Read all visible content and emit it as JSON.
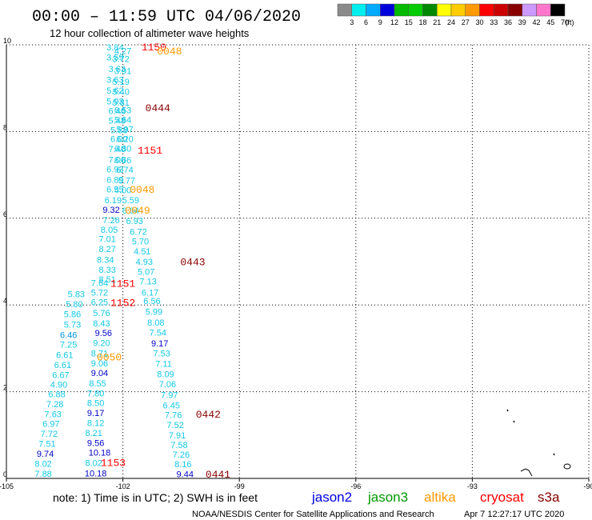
{
  "chart_data": {
    "type": "scatter",
    "title": "00:00 – 11:59 UTC 04/06/2020",
    "subtitle": "12 hour collection of altimeter wave heights",
    "xlim": [
      -105,
      -90
    ],
    "ylim": [
      0,
      10
    ],
    "x_ticks": [
      "-105",
      "-102",
      "-99",
      "-96",
      "-93",
      "-90"
    ],
    "y_ticks": [
      "0",
      "2",
      "4",
      "6",
      "8",
      "10"
    ],
    "grid": true,
    "colorbar": {
      "unit": "(ft)",
      "labels": [
        "3",
        "6",
        "9",
        "12",
        "15",
        "18",
        "21",
        "24",
        "27",
        "30",
        "33",
        "36",
        "39",
        "42",
        "45",
        "70"
      ],
      "colors": [
        "#8a8a8a",
        "#00eeee",
        "#00aaff",
        "#0000dd",
        "#00bb00",
        "#00cc00",
        "#008800",
        "#ffff00",
        "#ffcc00",
        "#ff9900",
        "#ff0000",
        "#cc0000",
        "#880000",
        "#cc99ff",
        "#ff77cc",
        "#000000"
      ]
    },
    "value_colors": {
      "cyan": "#12c8e6",
      "blue": "#0090e0",
      "dblue": "#0000c8"
    },
    "series": [
      {
        "name": "track A",
        "points": [
          {
            "lon": -102.2,
            "lat": 9.87,
            "v": "3.84",
            "c": "cyan"
          },
          {
            "lon": -102.0,
            "lat": 9.79,
            "v": "4.27",
            "c": "cyan"
          },
          {
            "lon": -102.2,
            "lat": 9.64,
            "v": "3.59",
            "c": "cyan"
          },
          {
            "lon": -102.05,
            "lat": 9.6,
            "v": "3.72",
            "c": "cyan"
          },
          {
            "lon": -102.15,
            "lat": 9.37,
            "v": "3.63",
            "c": "cyan"
          },
          {
            "lon": -102.0,
            "lat": 9.33,
            "v": "3.91",
            "c": "cyan"
          },
          {
            "lon": -102.2,
            "lat": 9.12,
            "v": "3.63",
            "c": "cyan"
          },
          {
            "lon": -102.05,
            "lat": 9.08,
            "v": "5.19",
            "c": "cyan"
          },
          {
            "lon": -102.2,
            "lat": 8.87,
            "v": "5.62",
            "c": "cyan"
          },
          {
            "lon": -102.05,
            "lat": 8.85,
            "v": "5.40",
            "c": "cyan"
          },
          {
            "lon": -102.2,
            "lat": 8.63,
            "v": "5.93",
            "c": "cyan"
          },
          {
            "lon": -102.05,
            "lat": 8.6,
            "v": "5.81",
            "c": "cyan"
          },
          {
            "lon": -102.15,
            "lat": 8.4,
            "v": "6.46",
            "c": "cyan"
          },
          {
            "lon": -102.0,
            "lat": 8.42,
            "v": "6.53",
            "c": "cyan"
          },
          {
            "lon": -102.15,
            "lat": 8.18,
            "v": "5.48",
            "c": "cyan"
          },
          {
            "lon": -102.0,
            "lat": 8.2,
            "v": "5.64",
            "c": "cyan"
          },
          {
            "lon": -102.1,
            "lat": 7.96,
            "v": "5.88",
            "c": "cyan"
          },
          {
            "lon": -101.95,
            "lat": 7.98,
            "v": "5.97",
            "c": "cyan"
          },
          {
            "lon": -102.1,
            "lat": 7.76,
            "v": "6.00",
            "c": "cyan"
          },
          {
            "lon": -101.95,
            "lat": 7.76,
            "v": "6.20",
            "c": "cyan"
          },
          {
            "lon": -102.15,
            "lat": 7.53,
            "v": "7.40",
            "c": "cyan"
          },
          {
            "lon": -102.0,
            "lat": 7.54,
            "v": "6.80",
            "c": "cyan"
          },
          {
            "lon": -102.15,
            "lat": 7.28,
            "v": "7.00",
            "c": "cyan"
          },
          {
            "lon": -102.0,
            "lat": 7.27,
            "v": "6.66",
            "c": "cyan"
          },
          {
            "lon": -102.2,
            "lat": 7.06,
            "v": "6.93",
            "c": "cyan"
          },
          {
            "lon": -101.95,
            "lat": 7.05,
            "v": "6.74",
            "c": "cyan"
          },
          {
            "lon": -102.2,
            "lat": 6.82,
            "v": "6.89",
            "c": "cyan"
          },
          {
            "lon": -101.9,
            "lat": 6.8,
            "v": "5.77",
            "c": "cyan"
          },
          {
            "lon": -102.2,
            "lat": 6.6,
            "v": "6.55",
            "c": "cyan"
          },
          {
            "lon": -102.0,
            "lat": 6.58,
            "v": "4.00",
            "c": "cyan"
          },
          {
            "lon": -102.25,
            "lat": 6.35,
            "v": "6.19",
            "c": "cyan"
          },
          {
            "lon": -101.8,
            "lat": 6.35,
            "v": "5.59",
            "c": "cyan"
          },
          {
            "lon": -102.3,
            "lat": 6.13,
            "v": "9.32",
            "c": "dblue"
          },
          {
            "lon": -101.8,
            "lat": 6.11,
            "v": "6.64",
            "c": "cyan"
          },
          {
            "lon": -102.3,
            "lat": 5.89,
            "v": "7.26",
            "c": "cyan"
          },
          {
            "lon": -101.7,
            "lat": 5.87,
            "v": "6.93",
            "c": "cyan"
          },
          {
            "lon": -102.35,
            "lat": 5.66,
            "v": "8.05",
            "c": "cyan"
          },
          {
            "lon": -101.6,
            "lat": 5.62,
            "v": "6.72",
            "c": "cyan"
          },
          {
            "lon": -102.4,
            "lat": 5.45,
            "v": "7.01",
            "c": "cyan"
          },
          {
            "lon": -101.55,
            "lat": 5.4,
            "v": "5.70",
            "c": "cyan"
          },
          {
            "lon": -102.4,
            "lat": 5.22,
            "v": "8.27",
            "c": "cyan"
          },
          {
            "lon": -101.5,
            "lat": 5.17,
            "v": "4.51",
            "c": "cyan"
          },
          {
            "lon": -102.45,
            "lat": 4.97,
            "v": "8.34",
            "c": "cyan"
          },
          {
            "lon": -101.45,
            "lat": 4.93,
            "v": "4.93",
            "c": "cyan"
          },
          {
            "lon": -102.4,
            "lat": 4.74,
            "v": "8.33",
            "c": "cyan"
          },
          {
            "lon": -101.4,
            "lat": 4.7,
            "v": "5.07",
            "c": "cyan"
          },
          {
            "lon": -102.4,
            "lat": 4.52,
            "v": "8.51",
            "c": "cyan"
          },
          {
            "lon": -101.35,
            "lat": 4.47,
            "v": "7.13",
            "c": "cyan"
          },
          {
            "lon": -102.6,
            "lat": 4.44,
            "v": "7.64",
            "c": "cyan"
          },
          {
            "lon": -101.3,
            "lat": 4.22,
            "v": "6.17",
            "c": "cyan"
          },
          {
            "lon": -102.6,
            "lat": 4.22,
            "v": "5.72",
            "c": "cyan"
          },
          {
            "lon": -101.25,
            "lat": 4.02,
            "v": "6.56",
            "c": "cyan"
          },
          {
            "lon": -102.6,
            "lat": 3.99,
            "v": "6.25",
            "c": "cyan"
          },
          {
            "lon": -101.2,
            "lat": 3.77,
            "v": "5.99",
            "c": "cyan"
          },
          {
            "lon": -102.55,
            "lat": 3.75,
            "v": "5.76",
            "c": "cyan"
          },
          {
            "lon": -101.15,
            "lat": 3.52,
            "v": "8.08",
            "c": "cyan"
          },
          {
            "lon": -102.55,
            "lat": 3.51,
            "v": "8.43",
            "c": "cyan"
          },
          {
            "lon": -101.1,
            "lat": 3.29,
            "v": "7.54",
            "c": "cyan"
          },
          {
            "lon": -102.5,
            "lat": 3.28,
            "v": "9.56",
            "c": "dblue"
          },
          {
            "lon": -101.05,
            "lat": 3.04,
            "v": "9.17",
            "c": "dblue"
          },
          {
            "lon": -102.55,
            "lat": 3.05,
            "v": "9.20",
            "c": "cyan"
          },
          {
            "lon": -101.0,
            "lat": 2.81,
            "v": "7.53",
            "c": "cyan"
          },
          {
            "lon": -102.6,
            "lat": 2.81,
            "v": "8.71",
            "c": "cyan"
          },
          {
            "lon": -100.95,
            "lat": 2.57,
            "v": "7.11",
            "c": "cyan"
          },
          {
            "lon": -102.6,
            "lat": 2.58,
            "v": "9.06",
            "c": "cyan"
          },
          {
            "lon": -100.9,
            "lat": 2.33,
            "v": "8.09",
            "c": "cyan"
          },
          {
            "lon": -102.6,
            "lat": 2.36,
            "v": "9.04",
            "c": "dblue"
          },
          {
            "lon": -100.85,
            "lat": 2.1,
            "v": "7.06",
            "c": "cyan"
          },
          {
            "lon": -102.65,
            "lat": 2.12,
            "v": "8.55",
            "c": "cyan"
          },
          {
            "lon": -100.8,
            "lat": 1.85,
            "v": "7.97",
            "c": "cyan"
          },
          {
            "lon": -102.7,
            "lat": 1.89,
            "v": "7.80",
            "c": "cyan"
          },
          {
            "lon": -100.75,
            "lat": 1.61,
            "v": "6.45",
            "c": "cyan"
          },
          {
            "lon": -102.7,
            "lat": 1.67,
            "v": "8.50",
            "c": "cyan"
          },
          {
            "lon": -100.7,
            "lat": 1.39,
            "v": "7.76",
            "c": "cyan"
          },
          {
            "lon": -102.7,
            "lat": 1.44,
            "v": "9.17",
            "c": "dblue"
          },
          {
            "lon": -100.65,
            "lat": 1.16,
            "v": "7.52",
            "c": "cyan"
          },
          {
            "lon": -102.7,
            "lat": 1.21,
            "v": "8.12",
            "c": "cyan"
          },
          {
            "lon": -100.6,
            "lat": 0.92,
            "v": "7.91",
            "c": "cyan"
          },
          {
            "lon": -102.75,
            "lat": 0.98,
            "v": "8.21",
            "c": "cyan"
          },
          {
            "lon": -100.55,
            "lat": 0.7,
            "v": "7.58",
            "c": "cyan"
          },
          {
            "lon": -102.7,
            "lat": 0.75,
            "v": "9.56",
            "c": "dblue"
          },
          {
            "lon": -100.5,
            "lat": 0.48,
            "v": "7.26",
            "c": "cyan"
          },
          {
            "lon": -102.6,
            "lat": 0.53,
            "v": "10.18",
            "c": "dblue"
          },
          {
            "lon": -100.45,
            "lat": 0.26,
            "v": "8.16",
            "c": "cyan"
          },
          {
            "lon": -102.75,
            "lat": 0.29,
            "v": "8.02",
            "c": "cyan"
          },
          {
            "lon": -100.4,
            "lat": 0.03,
            "v": "9.44",
            "c": "dblue"
          },
          {
            "lon": -102.7,
            "lat": 0.05,
            "v": "10.18",
            "c": "dblue"
          }
        ]
      },
      {
        "name": "track B",
        "points": [
          {
            "lon": -103.2,
            "lat": 4.18,
            "v": "5.83",
            "c": "cyan"
          },
          {
            "lon": -103.25,
            "lat": 3.95,
            "v": "5.80",
            "c": "cyan"
          },
          {
            "lon": -103.3,
            "lat": 3.72,
            "v": "5.86",
            "c": "cyan"
          },
          {
            "lon": -103.3,
            "lat": 3.48,
            "v": "5.73",
            "c": "cyan"
          },
          {
            "lon": -103.4,
            "lat": 3.24,
            "v": "6.46",
            "c": "blue"
          },
          {
            "lon": -103.4,
            "lat": 3.02,
            "v": "7.25",
            "c": "cyan"
          },
          {
            "lon": -103.5,
            "lat": 2.78,
            "v": "6.61",
            "c": "cyan"
          },
          {
            "lon": -103.55,
            "lat": 2.55,
            "v": "6.61",
            "c": "cyan"
          },
          {
            "lon": -103.6,
            "lat": 2.32,
            "v": "6.67",
            "c": "cyan"
          },
          {
            "lon": -103.65,
            "lat": 2.09,
            "v": "4.90",
            "c": "cyan"
          },
          {
            "lon": -103.7,
            "lat": 1.87,
            "v": "6.88",
            "c": "cyan"
          },
          {
            "lon": -103.75,
            "lat": 1.64,
            "v": "7.28",
            "c": "cyan"
          },
          {
            "lon": -103.8,
            "lat": 1.41,
            "v": "7.63",
            "c": "cyan"
          },
          {
            "lon": -103.85,
            "lat": 1.19,
            "v": "6.97",
            "c": "cyan"
          },
          {
            "lon": -103.9,
            "lat": 0.96,
            "v": "7.72",
            "c": "cyan"
          },
          {
            "lon": -103.95,
            "lat": 0.73,
            "v": "7.51",
            "c": "cyan"
          },
          {
            "lon": -104.0,
            "lat": 0.5,
            "v": "9.74",
            "c": "dblue"
          },
          {
            "lon": -104.05,
            "lat": 0.27,
            "v": "8.02",
            "c": "cyan"
          },
          {
            "lon": -104.05,
            "lat": 0.04,
            "v": "7.88",
            "c": "cyan"
          }
        ]
      }
    ],
    "time_labels": [
      {
        "lon": -101.2,
        "lat": 9.87,
        "t": "1150",
        "c": "#ff0000"
      },
      {
        "lon": -100.8,
        "lat": 9.78,
        "t": "0048",
        "c": "#ff9900"
      },
      {
        "lon": -101.1,
        "lat": 8.47,
        "t": "0444",
        "c": "#880000"
      },
      {
        "lon": -101.3,
        "lat": 7.49,
        "t": "1151",
        "c": "#ff0000"
      },
      {
        "lon": -101.5,
        "lat": 6.59,
        "t": "0048",
        "c": "#ff9900"
      },
      {
        "lon": -101.62,
        "lat": 6.11,
        "t": "0049",
        "c": "#ff9900"
      },
      {
        "lon": -100.2,
        "lat": 4.92,
        "t": "0443",
        "c": "#880000"
      },
      {
        "lon": -102.0,
        "lat": 4.42,
        "t": "1151",
        "c": "#ff0000"
      },
      {
        "lon": -102.0,
        "lat": 3.98,
        "t": "1152",
        "c": "#ff0000"
      },
      {
        "lon": -102.35,
        "lat": 2.72,
        "t": "0050",
        "c": "#ff9900"
      },
      {
        "lon": -99.8,
        "lat": 1.4,
        "t": "0442",
        "c": "#880000"
      },
      {
        "lon": -102.25,
        "lat": 0.29,
        "t": "1153",
        "c": "#ff0000"
      },
      {
        "lon": -99.55,
        "lat": 0.02,
        "t": "0441",
        "c": "#880000"
      }
    ]
  },
  "footer": {
    "note": "note: 1) Time is in UTC; 2) SWH is in feet",
    "satellites": [
      {
        "name": "jason2",
        "color": "#0000dd"
      },
      {
        "name": "jason3",
        "color": "#009900"
      },
      {
        "name": "altika",
        "color": "#ff9900"
      },
      {
        "name": "cryosat",
        "color": "#ff0000"
      },
      {
        "name": "s3a",
        "color": "#880000"
      }
    ],
    "credit": "NOAA/NESDIS Center for Satellite Applications and Research",
    "timestamp": "Apr  7 12:27:17 UTC 2020"
  }
}
